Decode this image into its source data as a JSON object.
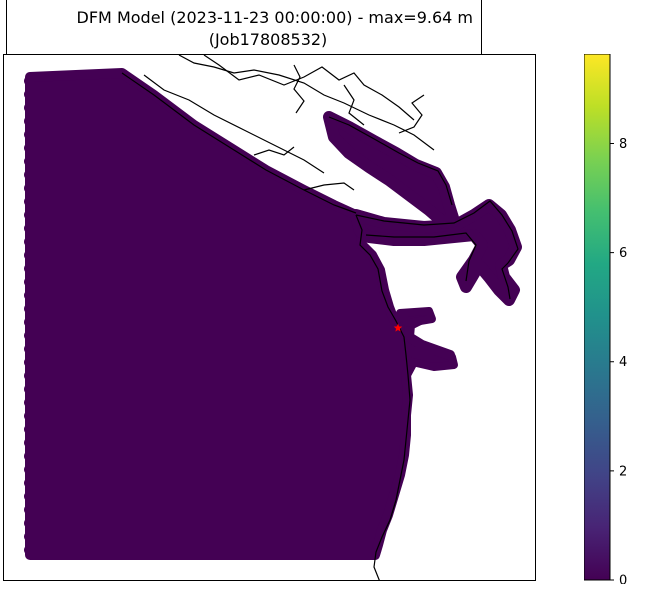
{
  "chart_data": {
    "type": "scatter",
    "title": "DFM Model (2023-11-23 00:00:00) - max=9.64 m",
    "subtitle": "(Job17808532)",
    "colormap": "viridis",
    "colorbar": {
      "vmin": 0,
      "vmax": 9.64,
      "ticks": [
        0,
        2,
        4,
        6,
        8
      ],
      "tick_labels": [
        "0",
        "2",
        "4",
        "6",
        "8"
      ]
    },
    "observed_value_range": [
      0,
      0.1
    ],
    "marker": {
      "symbol": "star",
      "color": "#ff0000",
      "meaning": "station"
    },
    "grid": false,
    "legend": "none"
  }
}
